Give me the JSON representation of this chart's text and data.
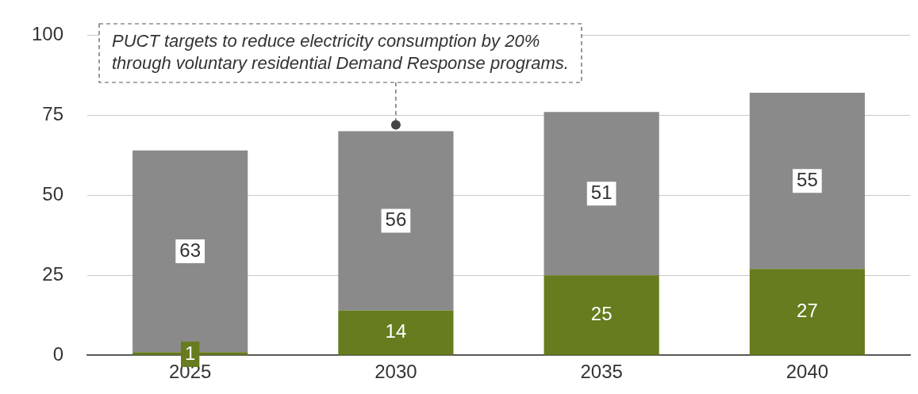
{
  "chart_data": {
    "type": "bar",
    "stacked": true,
    "categories": [
      "2025",
      "2030",
      "2035",
      "2040"
    ],
    "series": [
      {
        "color": "#667c1e",
        "values": [
          1,
          14,
          25,
          27
        ]
      },
      {
        "color": "#8a8a8a",
        "values": [
          63,
          56,
          51,
          55
        ]
      }
    ],
    "ylim": [
      0,
      100
    ],
    "yticks": [
      0,
      25,
      50,
      75,
      100
    ],
    "grid": "y",
    "legend": false,
    "data_labels": true,
    "annotations": [
      {
        "text": "PUCT targets to reduce electricity consumption by 20% through voluntary residential Demand Response programs.",
        "x": "2030",
        "y": 70
      }
    ]
  }
}
